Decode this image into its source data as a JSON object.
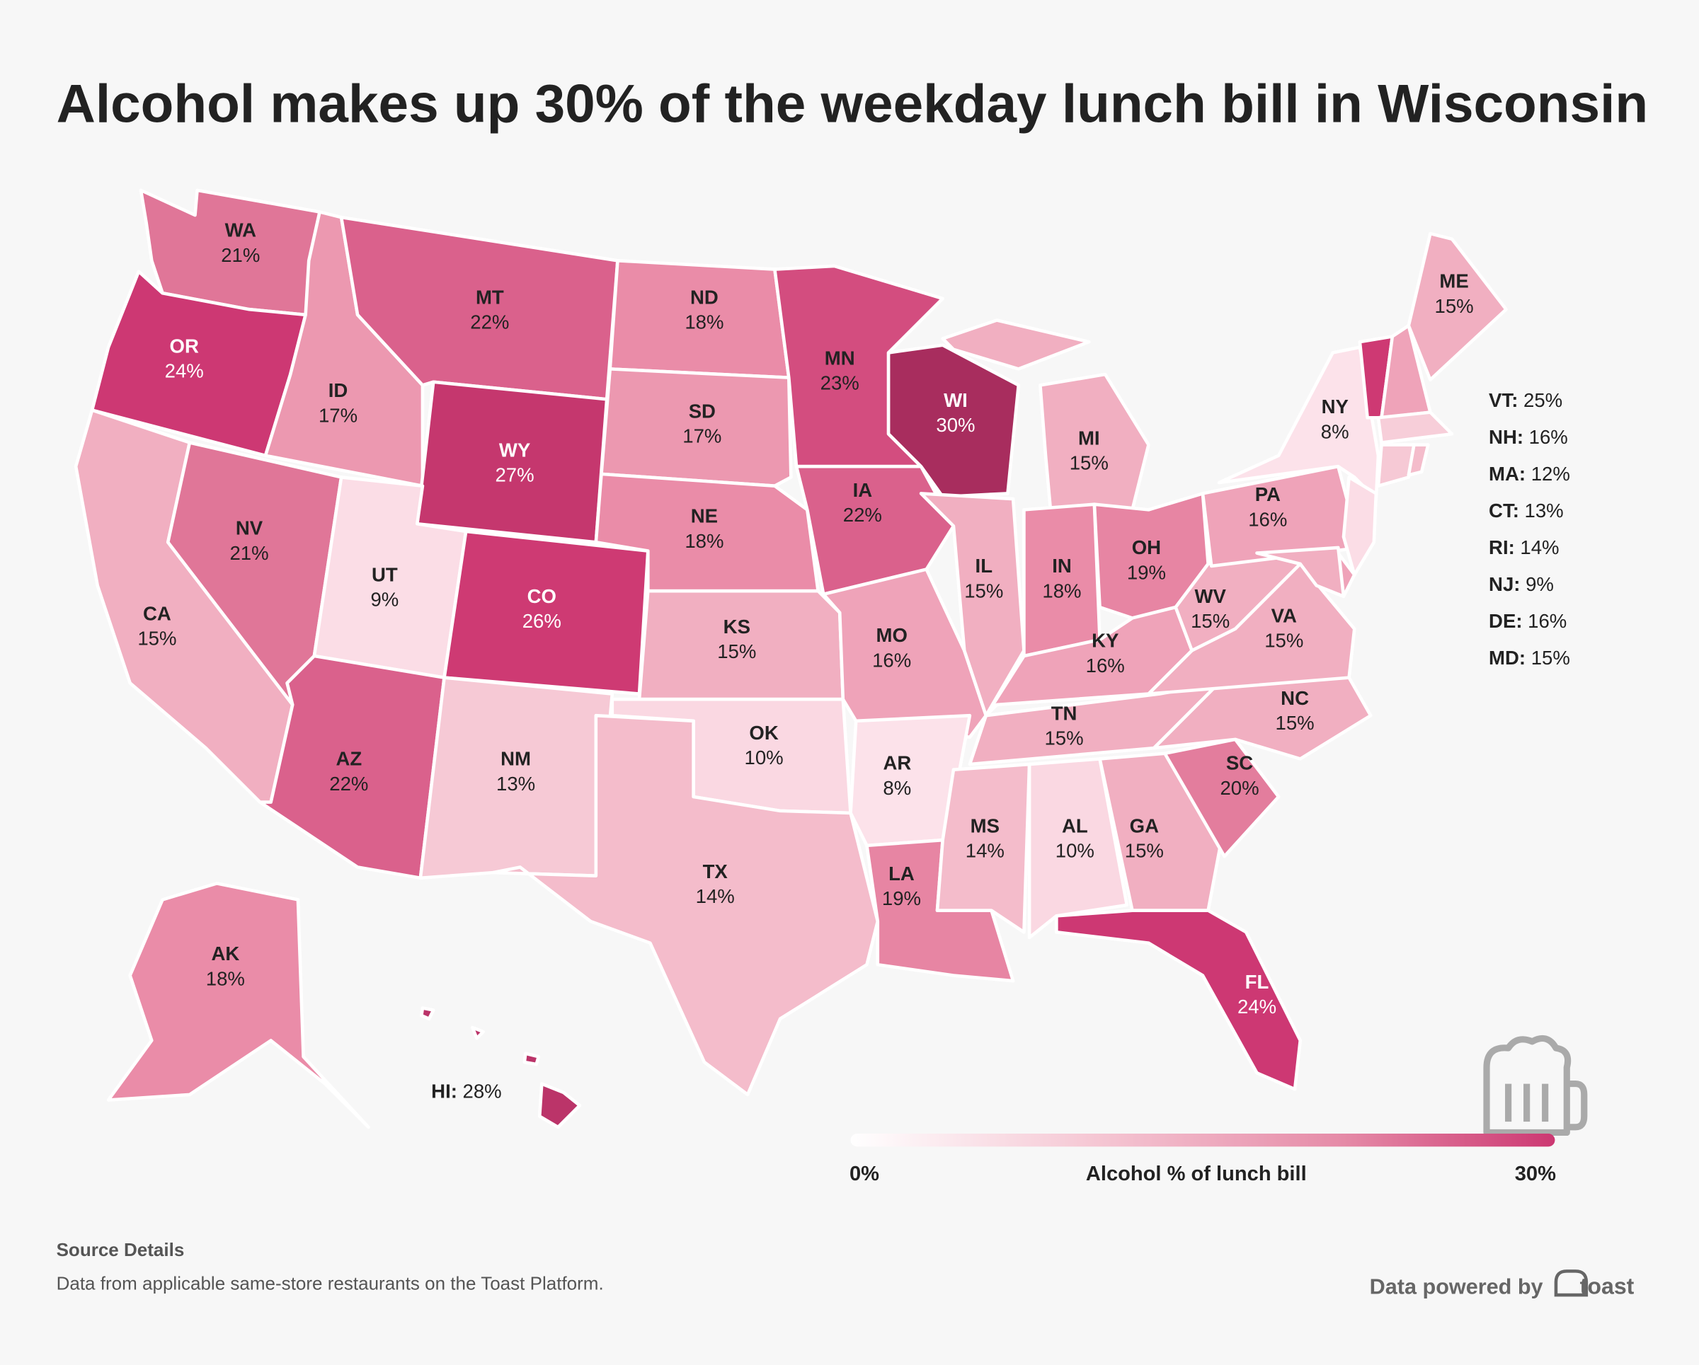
{
  "title": "Alcohol makes up 30% of the weekday lunch bill in Wisconsin",
  "chart_data": {
    "type": "choropleth",
    "metric": "Alcohol % of lunch bill",
    "range": [
      0,
      30
    ],
    "states": [
      {
        "code": "WA",
        "value": 21,
        "label": "21%"
      },
      {
        "code": "OR",
        "value": 24,
        "label": "24%"
      },
      {
        "code": "CA",
        "value": 15,
        "label": "15%"
      },
      {
        "code": "NV",
        "value": 21,
        "label": "21%"
      },
      {
        "code": "ID",
        "value": 17,
        "label": "17%"
      },
      {
        "code": "MT",
        "value": 22,
        "label": "22%"
      },
      {
        "code": "WY",
        "value": 27,
        "label": "27%"
      },
      {
        "code": "UT",
        "value": 9,
        "label": "9%"
      },
      {
        "code": "CO",
        "value": 26,
        "label": "26%"
      },
      {
        "code": "AZ",
        "value": 22,
        "label": "22%"
      },
      {
        "code": "NM",
        "value": 13,
        "label": "13%"
      },
      {
        "code": "ND",
        "value": 18,
        "label": "18%"
      },
      {
        "code": "SD",
        "value": 17,
        "label": "17%"
      },
      {
        "code": "NE",
        "value": 18,
        "label": "18%"
      },
      {
        "code": "KS",
        "value": 15,
        "label": "15%"
      },
      {
        "code": "OK",
        "value": 10,
        "label": "10%"
      },
      {
        "code": "TX",
        "value": 14,
        "label": "14%"
      },
      {
        "code": "MN",
        "value": 23,
        "label": "23%"
      },
      {
        "code": "IA",
        "value": 22,
        "label": "22%"
      },
      {
        "code": "MO",
        "value": 16,
        "label": "16%"
      },
      {
        "code": "AR",
        "value": 8,
        "label": "8%"
      },
      {
        "code": "LA",
        "value": 19,
        "label": "19%"
      },
      {
        "code": "WI",
        "value": 30,
        "label": "30%"
      },
      {
        "code": "MI",
        "value": 15,
        "label": "15%"
      },
      {
        "code": "IL",
        "value": 15,
        "label": "15%"
      },
      {
        "code": "IN",
        "value": 18,
        "label": "18%"
      },
      {
        "code": "OH",
        "value": 19,
        "label": "19%"
      },
      {
        "code": "KY",
        "value": 16,
        "label": "16%"
      },
      {
        "code": "TN",
        "value": 15,
        "label": "15%"
      },
      {
        "code": "MS",
        "value": 14,
        "label": "14%"
      },
      {
        "code": "AL",
        "value": 10,
        "label": "10%"
      },
      {
        "code": "GA",
        "value": 15,
        "label": "15%"
      },
      {
        "code": "FL",
        "value": 24,
        "label": "24%"
      },
      {
        "code": "SC",
        "value": 20,
        "label": "20%"
      },
      {
        "code": "NC",
        "value": 15,
        "label": "15%"
      },
      {
        "code": "VA",
        "value": 15,
        "label": "15%"
      },
      {
        "code": "WV",
        "value": 15,
        "label": "15%"
      },
      {
        "code": "PA",
        "value": 16,
        "label": "16%"
      },
      {
        "code": "NY",
        "value": 8,
        "label": "8%"
      },
      {
        "code": "ME",
        "value": 15,
        "label": "15%"
      },
      {
        "code": "AK",
        "value": 18,
        "label": "18%"
      },
      {
        "code": "VT",
        "value": 25,
        "label": "25%"
      },
      {
        "code": "NH",
        "value": 16,
        "label": "16%"
      },
      {
        "code": "MA",
        "value": 12,
        "label": "12%"
      },
      {
        "code": "CT",
        "value": 13,
        "label": "13%"
      },
      {
        "code": "RI",
        "value": 14,
        "label": "14%"
      },
      {
        "code": "NJ",
        "value": 9,
        "label": "9%"
      },
      {
        "code": "DE",
        "value": 16,
        "label": "16%"
      },
      {
        "code": "MD",
        "value": 15,
        "label": "15%"
      },
      {
        "code": "HI",
        "value": 28,
        "label": "28%"
      }
    ],
    "side_legend": [
      "VT",
      "NH",
      "MA",
      "CT",
      "RI",
      "NJ",
      "DE",
      "MD"
    ],
    "legend": {
      "min_label": "0%",
      "max_label": "30%",
      "title": "Alcohol % of lunch bill"
    }
  },
  "colors": {
    "low": "#fdf3f6",
    "high": "#c8306e",
    "darkest": "#a82d5e"
  },
  "footer": {
    "source_heading": "Source Details",
    "source_text": "Data from applicable same-store restaurants on the Toast Platform.",
    "powered_by": "Data powered by",
    "brand": "toast"
  },
  "icons": {
    "mug": "beer-mug-icon",
    "logo": "toast-logo-icon"
  }
}
